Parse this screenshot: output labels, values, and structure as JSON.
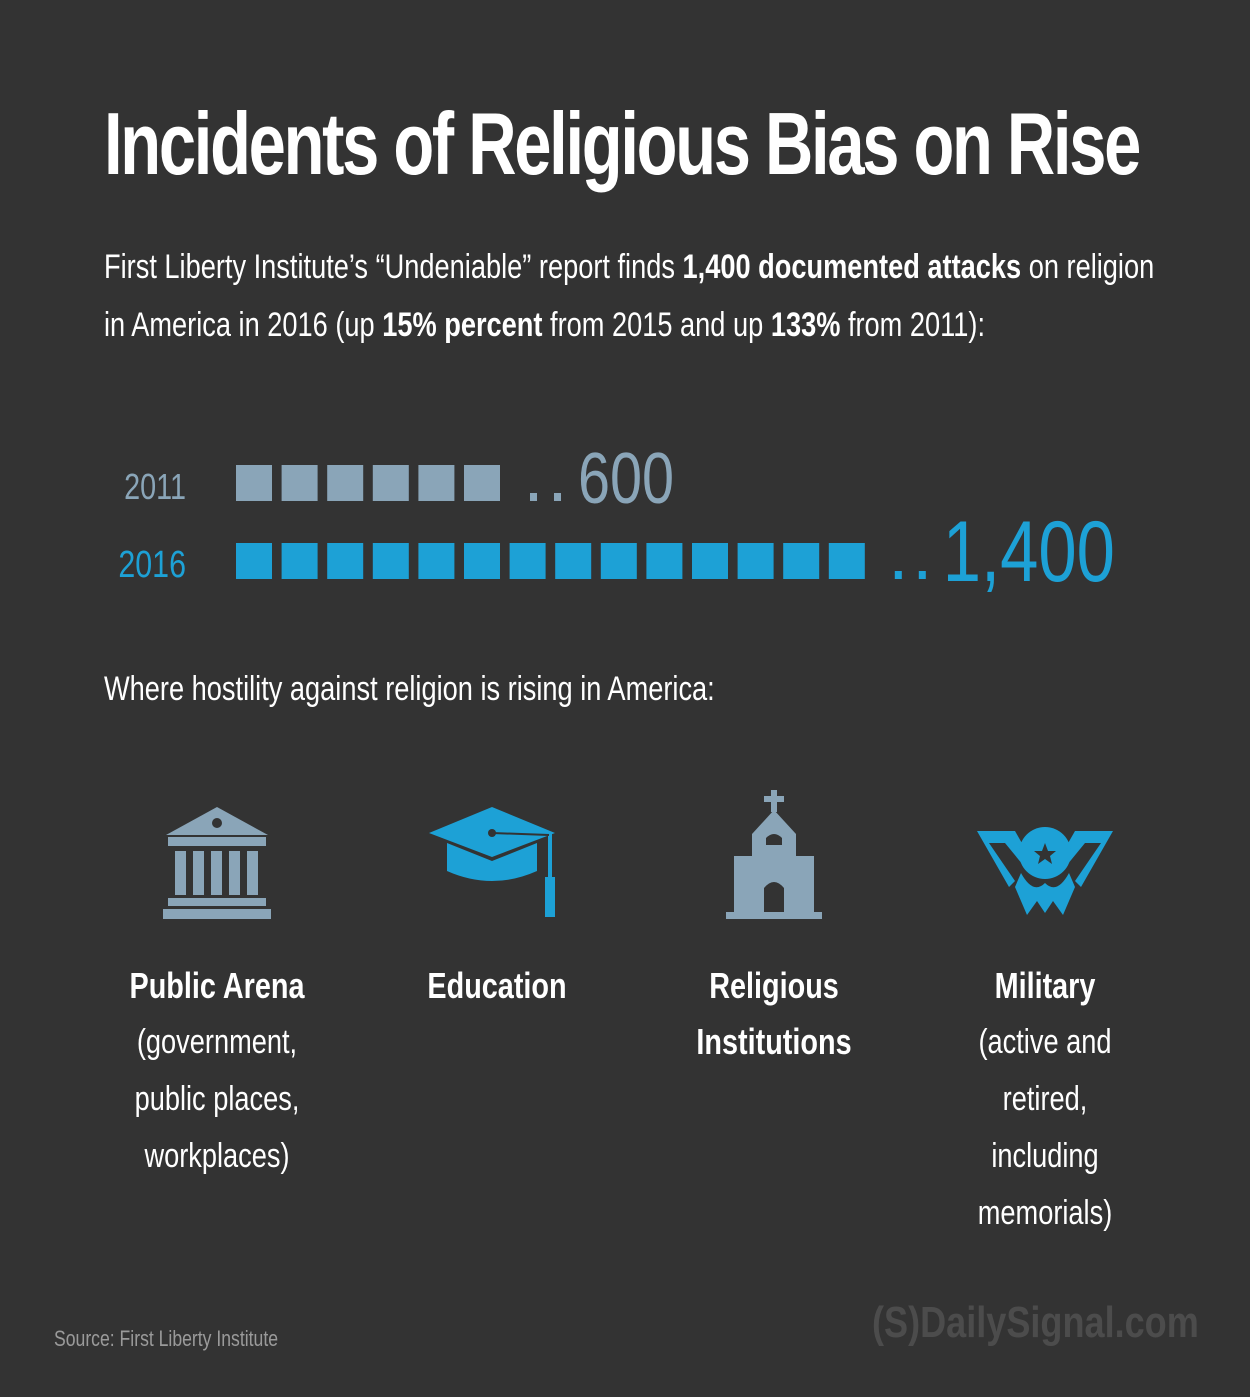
{
  "title": "Incidents of Religious Bias on Rise",
  "intro": {
    "p1": "First Liberty Institute’s “Undeniable” report finds ",
    "b1": "1,400 documented attacks",
    "p2": " on religion in America in 2016 (up ",
    "b2": "15% percent",
    "p3": " from 2015 and up ",
    "b3": "133%",
    "p4": " from 2011):"
  },
  "chart_data": {
    "type": "bar",
    "categories": [
      "2011",
      "2016"
    ],
    "values": [
      600,
      1400
    ],
    "value_labels": [
      "600",
      "1,400"
    ],
    "unit_per_square": 100,
    "colors": [
      "#8aa5b8",
      "#1da1d6"
    ]
  },
  "subtitle": "Where hostility against religion is rising in America:",
  "categories": [
    {
      "label": "Public Arena",
      "desc": [
        "(government,",
        "public places,",
        "workplaces)"
      ],
      "icon": "building-icon",
      "color": "#8aa5b8"
    },
    {
      "label": "Education",
      "desc": [],
      "icon": "graduation-cap-icon",
      "color": "#1da1d6"
    },
    {
      "label": "Religious Institutions",
      "label_lines": [
        "Religious",
        "Institutions"
      ],
      "desc": [],
      "icon": "church-icon",
      "color": "#8aa5b8"
    },
    {
      "label": "Military",
      "desc": [
        "(active and",
        "retired,",
        "including",
        "memorials)"
      ],
      "icon": "military-medal-icon",
      "color": "#1da1d6"
    }
  ],
  "source": "Source: First Liberty Institute",
  "brand": "(S)DailySignal.com"
}
